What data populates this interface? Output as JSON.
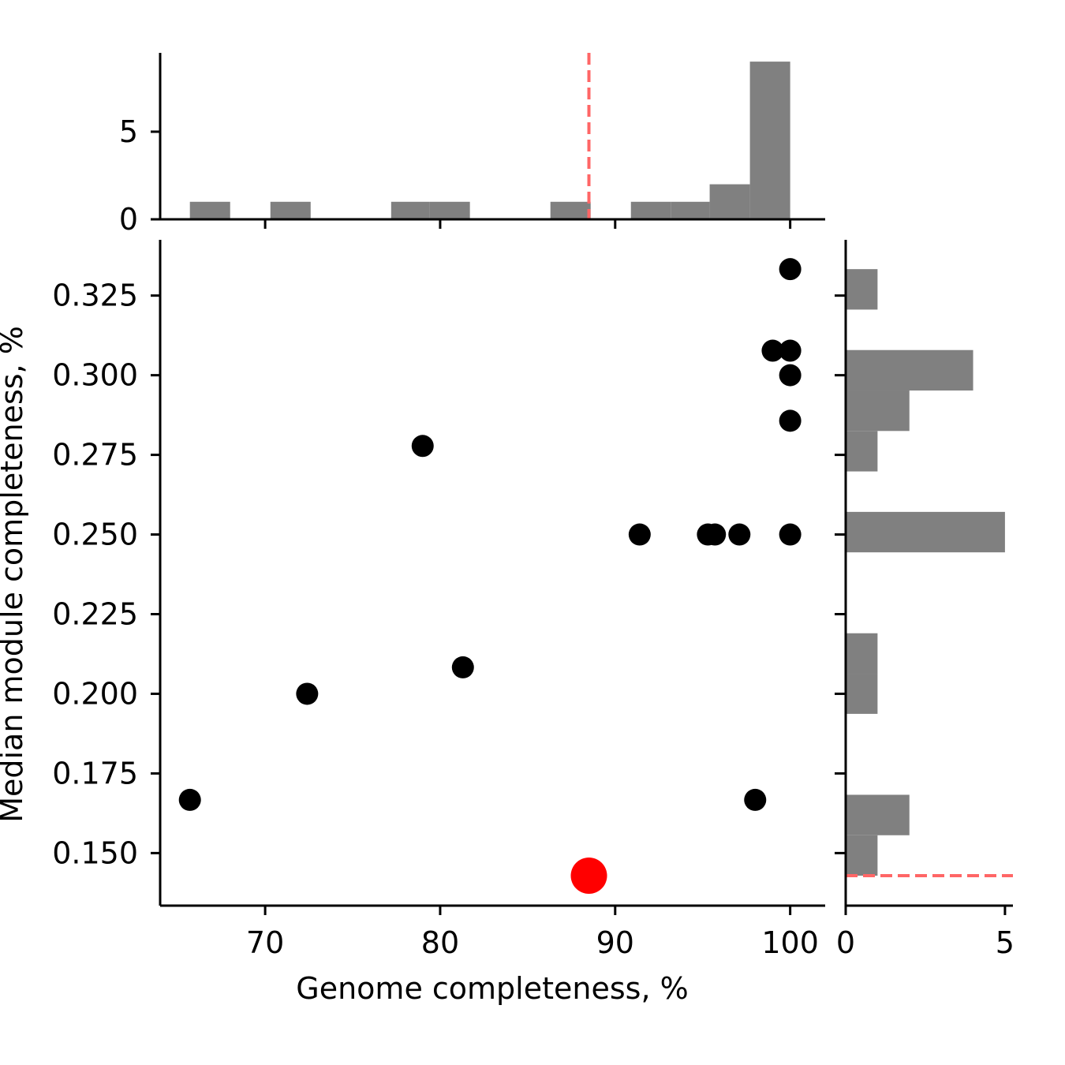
{
  "chart_data": {
    "type": "scatter",
    "xlabel": "Genome completeness, %",
    "ylabel": "Median module completeness, %",
    "xlim": [
      64,
      102
    ],
    "ylim": [
      0.1335,
      0.3425
    ],
    "xticks": [
      70,
      80,
      90,
      100
    ],
    "yticks": [
      0.15,
      0.175,
      0.2,
      0.225,
      0.25,
      0.275,
      0.3,
      0.325
    ],
    "ytick_labels": [
      "0.150",
      "0.175",
      "0.200",
      "0.225",
      "0.250",
      "0.275",
      "0.300",
      "0.325"
    ],
    "colors": {
      "points": "#000000",
      "highlight": "#ff0000",
      "bars": "#808080",
      "reference_line": "#ff6666"
    },
    "points": [
      {
        "x": 65.7,
        "y": 0.1667
      },
      {
        "x": 72.4,
        "y": 0.2
      },
      {
        "x": 79.0,
        "y": 0.2778
      },
      {
        "x": 81.3,
        "y": 0.2083
      },
      {
        "x": 91.4,
        "y": 0.25
      },
      {
        "x": 95.3,
        "y": 0.25
      },
      {
        "x": 95.7,
        "y": 0.25
      },
      {
        "x": 97.1,
        "y": 0.25
      },
      {
        "x": 98.0,
        "y": 0.1667
      },
      {
        "x": 99.0,
        "y": 0.3077
      },
      {
        "x": 100.0,
        "y": 0.3077
      },
      {
        "x": 100.0,
        "y": 0.3
      },
      {
        "x": 100.0,
        "y": 0.2857
      },
      {
        "x": 100.0,
        "y": 0.25
      },
      {
        "x": 100.0,
        "y": 0.3333
      }
    ],
    "highlight_point": {
      "x": 88.5,
      "y": 0.1429
    },
    "top_histogram": {
      "ylim": [
        0,
        9.5
      ],
      "yticks": [
        0,
        5
      ],
      "bin_edges": [
        65.7,
        68.0,
        70.3,
        72.6,
        74.9,
        77.2,
        79.4,
        81.7,
        84.0,
        86.3,
        88.6,
        90.9,
        93.2,
        95.4,
        97.7,
        100.0
      ],
      "counts": [
        1,
        0,
        1,
        0,
        0,
        1,
        1,
        0,
        0,
        1,
        0,
        1,
        1,
        2,
        9
      ],
      "reference_x": 88.5
    },
    "right_histogram": {
      "xlim": [
        0,
        5.25
      ],
      "xticks": [
        0,
        5
      ],
      "bin_edges": [
        0.1429,
        0.1556,
        0.1683,
        0.181,
        0.1937,
        0.2063,
        0.219,
        0.2317,
        0.2444,
        0.2571,
        0.2698,
        0.2825,
        0.2952,
        0.3079,
        0.3206,
        0.3333
      ],
      "counts": [
        1,
        2,
        0,
        0,
        1,
        1,
        0,
        0,
        5,
        0,
        1,
        2,
        4,
        0,
        1
      ],
      "reference_y": 0.1429
    }
  }
}
